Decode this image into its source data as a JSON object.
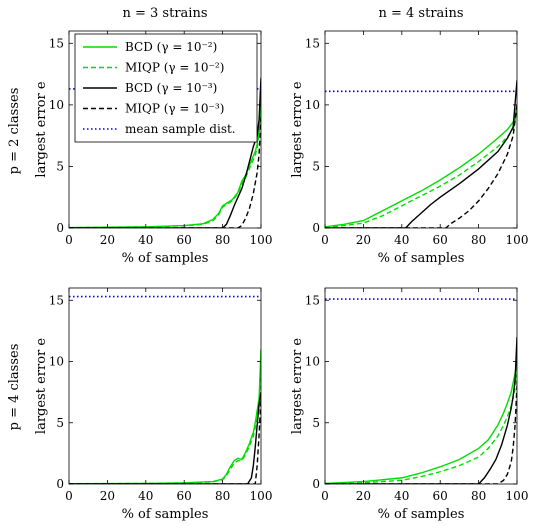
{
  "figure": {
    "column_titles": [
      "n = 3 strains",
      "n = 4 strains"
    ],
    "row_labels": [
      "p = 2 classes",
      "p = 4 classes"
    ]
  },
  "legend": {
    "entries": [
      {
        "label": "BCD (γ = 10⁻²)",
        "color": "#00dd00",
        "dash": "solid"
      },
      {
        "label": "MIQP (γ = 10⁻²)",
        "color": "#00dd00",
        "dash": "dashed"
      },
      {
        "label": "BCD (γ = 10⁻³)",
        "color": "#000000",
        "dash": "solid"
      },
      {
        "label": "MIQP (γ = 10⁻³)",
        "color": "#000000",
        "dash": "dashed"
      },
      {
        "label": "mean sample dist.",
        "color": "#0000ff",
        "dash": "dotted"
      }
    ]
  },
  "chart_data": [
    {
      "type": "line",
      "column_title": "n = 3 strains",
      "row_label": "p = 2 classes",
      "xlabel": "% of samples",
      "ylabel": "largest error e",
      "xlim": [
        0,
        100
      ],
      "ylim": [
        0,
        16
      ],
      "xticks": [
        0,
        20,
        40,
        60,
        80,
        100
      ],
      "yticks": [
        0,
        5,
        10,
        15
      ],
      "series": [
        {
          "name": "BCD (γ = 10⁻²)",
          "x": [
            0,
            20,
            40,
            60,
            70,
            75,
            78,
            80,
            82,
            85,
            88,
            90,
            92,
            95,
            97,
            98,
            99,
            100
          ],
          "y": [
            0.03,
            0.06,
            0.1,
            0.2,
            0.35,
            0.7,
            1.2,
            1.8,
            2.0,
            2.3,
            2.9,
            3.8,
            4.3,
            5.5,
            6.2,
            6.8,
            8,
            10
          ]
        },
        {
          "name": "MIQP (γ = 10⁻²)",
          "x": [
            0,
            20,
            40,
            60,
            70,
            75,
            78,
            80,
            82,
            85,
            88,
            90,
            92,
            95,
            97,
            98,
            99,
            100
          ],
          "y": [
            0.02,
            0.05,
            0.09,
            0.18,
            0.3,
            0.6,
            1.1,
            1.7,
            1.9,
            2.2,
            2.8,
            3.6,
            4.1,
            5.2,
            5.9,
            6.5,
            7.6,
            9.6
          ]
        },
        {
          "name": "BCD (γ = 10⁻³)",
          "x": [
            0,
            80,
            82,
            84,
            86,
            88,
            90,
            92,
            94,
            96,
            98,
            99,
            100
          ],
          "y": [
            0,
            0,
            0.3,
            1.0,
            1.8,
            2.5,
            3.2,
            4.2,
            5.4,
            6.6,
            7.5,
            8.8,
            12.2
          ]
        },
        {
          "name": "MIQP (γ = 10⁻³)",
          "x": [
            0,
            88,
            90,
            92,
            94,
            96,
            98,
            99,
            100
          ],
          "y": [
            0,
            0,
            0.2,
            0.8,
            1.6,
            2.8,
            4.5,
            6.0,
            9.0
          ]
        },
        {
          "name": "mean sample dist.",
          "x": [
            0,
            100
          ],
          "y": [
            11.3,
            11.3
          ]
        }
      ]
    },
    {
      "type": "line",
      "column_title": "n = 4 strains",
      "row_label": "",
      "xlabel": "% of samples",
      "ylabel": "largest error e",
      "xlim": [
        0,
        100
      ],
      "ylim": [
        0,
        16
      ],
      "xticks": [
        0,
        20,
        40,
        60,
        80,
        100
      ],
      "yticks": [
        0,
        5,
        10,
        15
      ],
      "series": [
        {
          "name": "BCD (γ = 10⁻²)",
          "x": [
            0,
            10,
            20,
            30,
            40,
            50,
            60,
            70,
            80,
            90,
            95,
            98,
            100
          ],
          "y": [
            0.1,
            0.3,
            0.6,
            1.4,
            2.2,
            3.0,
            3.9,
            4.9,
            6.0,
            7.3,
            8.0,
            8.6,
            9.8
          ]
        },
        {
          "name": "MIQP (γ = 10⁻²)",
          "x": [
            0,
            10,
            20,
            30,
            40,
            50,
            60,
            70,
            80,
            90,
            95,
            98,
            100
          ],
          "y": [
            0.05,
            0.2,
            0.4,
            1.0,
            1.8,
            2.6,
            3.4,
            4.3,
            5.4,
            6.6,
            7.4,
            8.0,
            9.5
          ]
        },
        {
          "name": "BCD (γ = 10⁻³)",
          "x": [
            0,
            42,
            45,
            50,
            55,
            60,
            70,
            80,
            90,
            95,
            98,
            100
          ],
          "y": [
            0,
            0,
            0.5,
            1.2,
            1.9,
            2.5,
            3.6,
            4.8,
            6.2,
            7.3,
            8.2,
            12.0
          ]
        },
        {
          "name": "MIQP (γ = 10⁻³)",
          "x": [
            0,
            63,
            65,
            70,
            75,
            80,
            85,
            90,
            95,
            98,
            100
          ],
          "y": [
            0,
            0,
            0.3,
            0.8,
            1.4,
            2.2,
            3.2,
            4.4,
            6.0,
            7.5,
            10
          ]
        },
        {
          "name": "mean sample dist.",
          "x": [
            0,
            100
          ],
          "y": [
            11.1,
            11.1
          ]
        }
      ]
    },
    {
      "type": "line",
      "column_title": "",
      "row_label": "p = 4 classes",
      "xlabel": "% of samples",
      "ylabel": "largest error e",
      "xlim": [
        0,
        100
      ],
      "ylim": [
        0,
        16
      ],
      "xticks": [
        0,
        20,
        40,
        60,
        80,
        100
      ],
      "yticks": [
        0,
        5,
        10,
        15
      ],
      "series": [
        {
          "name": "BCD (γ = 10⁻²)",
          "x": [
            0,
            40,
            60,
            75,
            80,
            82,
            84,
            86,
            88,
            90,
            92,
            94,
            95,
            96,
            97,
            98,
            99,
            100
          ],
          "y": [
            0.02,
            0.05,
            0.1,
            0.2,
            0.4,
            0.8,
            1.4,
            1.9,
            2.1,
            2.0,
            2.6,
            3.3,
            3.8,
            4.2,
            5.0,
            6.0,
            7.0,
            11
          ]
        },
        {
          "name": "MIQP (γ = 10⁻²)",
          "x": [
            0,
            40,
            60,
            75,
            80,
            82,
            84,
            86,
            88,
            90,
            92,
            94,
            95,
            96,
            97,
            98,
            99,
            100
          ],
          "y": [
            0.01,
            0.04,
            0.08,
            0.18,
            0.35,
            0.7,
            1.2,
            1.7,
            1.9,
            1.9,
            2.4,
            3.1,
            3.5,
            3.9,
            4.6,
            5.5,
            6.5,
            9.5
          ]
        },
        {
          "name": "BCD (γ = 10⁻³)",
          "x": [
            0,
            93,
            95,
            96,
            97,
            98,
            99,
            100
          ],
          "y": [
            0,
            0,
            0.5,
            1.5,
            3.0,
            4.8,
            6.5,
            7.5
          ]
        },
        {
          "name": "MIQP (γ = 10⁻³)",
          "x": [
            0,
            97,
            98,
            99,
            100
          ],
          "y": [
            0,
            0,
            1.5,
            4.0,
            7.0
          ]
        },
        {
          "name": "mean sample dist.",
          "x": [
            0,
            100
          ],
          "y": [
            15.3,
            15.3
          ]
        }
      ]
    },
    {
      "type": "line",
      "column_title": "",
      "row_label": "",
      "xlabel": "% of samples",
      "ylabel": "largest error e",
      "xlim": [
        0,
        100
      ],
      "ylim": [
        0,
        16
      ],
      "xticks": [
        0,
        20,
        40,
        60,
        80,
        100
      ],
      "yticks": [
        0,
        5,
        10,
        15
      ],
      "series": [
        {
          "name": "BCD (γ = 10⁻²)",
          "x": [
            0,
            20,
            40,
            50,
            60,
            70,
            80,
            85,
            90,
            93,
            95,
            97,
            98,
            99,
            100
          ],
          "y": [
            0.05,
            0.2,
            0.5,
            0.9,
            1.4,
            2.0,
            2.9,
            3.6,
            4.8,
            5.8,
            6.6,
            7.5,
            8.3,
            9.0,
            10
          ]
        },
        {
          "name": "MIQP (γ = 10⁻²)",
          "x": [
            0,
            20,
            40,
            50,
            60,
            70,
            80,
            85,
            90,
            93,
            95,
            97,
            98,
            99,
            100
          ],
          "y": [
            0.02,
            0.1,
            0.3,
            0.6,
            1.0,
            1.5,
            2.2,
            2.9,
            3.9,
            4.8,
            5.5,
            6.4,
            7.0,
            7.8,
            9.0
          ]
        },
        {
          "name": "BCD (γ = 10⁻³)",
          "x": [
            0,
            80,
            83,
            86,
            89,
            92,
            95,
            97,
            98,
            99,
            100
          ],
          "y": [
            0,
            0,
            0.5,
            1.2,
            2.0,
            3.2,
            4.8,
            6.2,
            7.2,
            8.5,
            12
          ]
        },
        {
          "name": "MIQP (γ = 10⁻³)",
          "x": [
            0,
            90,
            93,
            95,
            97,
            98,
            99,
            100
          ],
          "y": [
            0,
            0,
            0.3,
            0.8,
            1.8,
            3.0,
            4.8,
            8.0
          ]
        },
        {
          "name": "mean sample dist.",
          "x": [
            0,
            100
          ],
          "y": [
            15.1,
            15.1
          ]
        }
      ]
    }
  ]
}
